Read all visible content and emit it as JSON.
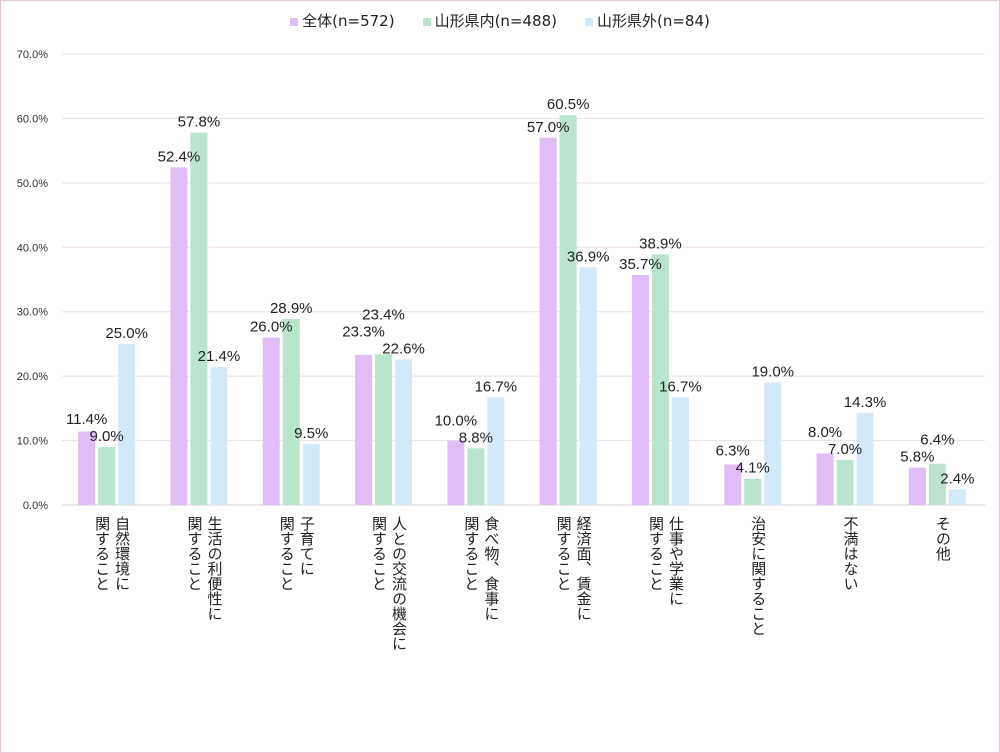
{
  "chart_data": {
    "type": "bar",
    "title": "",
    "xlabel": "",
    "ylabel": "",
    "ylim": [
      0,
      70
    ],
    "yticks": [
      "0.0%",
      "10.0%",
      "20.0%",
      "30.0%",
      "40.0%",
      "50.0%",
      "60.0%",
      "70.0%"
    ],
    "grid": true,
    "legend_position": "top",
    "categories": [
      [
        "自然環境に",
        "関すること"
      ],
      [
        "生活の利便性に",
        "関すること"
      ],
      [
        "子育てに",
        "関すること"
      ],
      [
        "人との交流の機会に",
        "関すること"
      ],
      [
        "食べ物、食事に",
        "関すること"
      ],
      [
        "経済面、賃金に",
        "関すること"
      ],
      [
        "仕事や学業に",
        "関すること"
      ],
      [
        "治安に関すること"
      ],
      [
        "不満はない"
      ],
      [
        "その他"
      ]
    ],
    "series": [
      {
        "name": "全体(n=572)",
        "color": "#e0bdf7",
        "values": [
          11.4,
          52.4,
          26.0,
          23.3,
          10.0,
          57.0,
          35.7,
          6.3,
          8.0,
          5.8
        ]
      },
      {
        "name": "山形県内(n=488)",
        "color": "#b9e5cd",
        "values": [
          9.0,
          57.8,
          28.9,
          23.4,
          8.8,
          60.5,
          38.9,
          4.1,
          7.0,
          6.4
        ]
      },
      {
        "name": "山形県外(n=84)",
        "color": "#d3e9f8",
        "values": [
          25.0,
          21.4,
          9.5,
          22.6,
          16.7,
          36.9,
          16.7,
          19.0,
          14.3,
          2.4
        ]
      }
    ]
  }
}
